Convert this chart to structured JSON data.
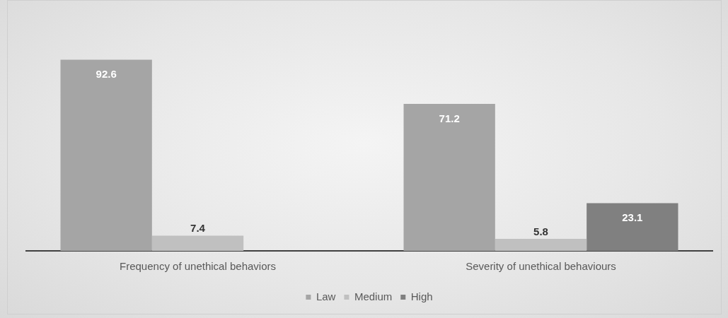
{
  "chart_data": {
    "type": "bar",
    "categories": [
      "Frequency of unethical behaviors",
      "Severity of unethical behaviours"
    ],
    "series": [
      {
        "name": "Law",
        "color": "#a5a5a5",
        "values": [
          92.6,
          71.2
        ]
      },
      {
        "name": "Medium",
        "color": "#c0c0c0",
        "values": [
          7.4,
          5.8
        ]
      },
      {
        "name": "High",
        "color": "#808080",
        "values": [
          null,
          23.1
        ]
      }
    ],
    "tick_labels": "x",
    "data_labels": true,
    "legend": "bottom",
    "grid": false
  }
}
